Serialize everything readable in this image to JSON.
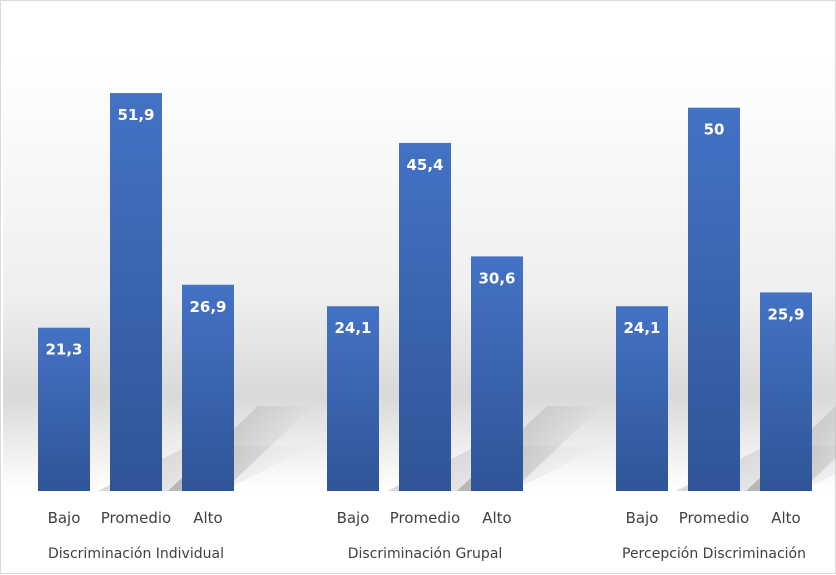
{
  "chart_data": {
    "type": "bar",
    "title": "",
    "xlabel": "",
    "ylabel": "",
    "ylim": [
      0,
      60
    ],
    "grid": false,
    "legend": "none",
    "groups": [
      {
        "name": "Discriminación Individual",
        "categories": [
          "Bajo",
          "Promedio",
          "Alto"
        ],
        "values": [
          21.3,
          51.9,
          26.9
        ],
        "labels": [
          "21,3",
          "51,9",
          "26,9"
        ]
      },
      {
        "name": "Discriminación Grupal",
        "categories": [
          "Bajo",
          "Promedio",
          "Alto"
        ],
        "values": [
          24.1,
          45.4,
          30.6
        ],
        "labels": [
          "24,1",
          "45,4",
          "30,6"
        ]
      },
      {
        "name": "Percepción Discriminación",
        "categories": [
          "Bajo",
          "Promedio",
          "Alto"
        ],
        "values": [
          24.1,
          50,
          25.9
        ],
        "labels": [
          "24,1",
          "50",
          "25,9"
        ]
      }
    ],
    "colors": {
      "bar_top": "#4472c4",
      "bar_bottom": "#2f5597",
      "value_label": "#ffffff",
      "axis_text": "#404040",
      "shadow": "#bfbfbf"
    }
  }
}
